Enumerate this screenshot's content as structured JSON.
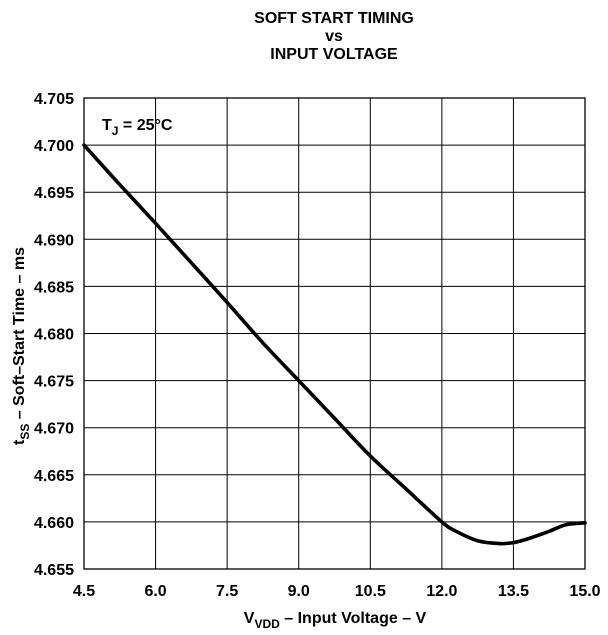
{
  "chart_data": {
    "type": "line",
    "title_lines": [
      "SOFT START TIMING",
      "vs",
      "INPUT VOLTAGE"
    ],
    "xlabel": {
      "main": "V",
      "sub": "VDD",
      "rest": " –  Input Voltage – V"
    },
    "ylabel": {
      "main": "t",
      "sub": "SS",
      "rest": " – Soft–Start Time – ms"
    },
    "annotation": {
      "main": "T",
      "sub": "J",
      "rest": " = 25°C"
    },
    "xlim": [
      4.5,
      15.0
    ],
    "ylim": [
      4.655,
      4.705
    ],
    "x_ticks": [
      4.5,
      6.0,
      7.5,
      9.0,
      10.5,
      12.0,
      13.5,
      15.0
    ],
    "x_tick_labels": [
      "4.5",
      "6.0",
      "7.5",
      "9.0",
      "10.5",
      "12.0",
      "13.5",
      "15.0"
    ],
    "y_ticks": [
      4.655,
      4.66,
      4.665,
      4.67,
      4.675,
      4.68,
      4.685,
      4.69,
      4.695,
      4.7,
      4.705
    ],
    "y_tick_labels": [
      "4.655",
      "4.660",
      "4.665",
      "4.670",
      "4.675",
      "4.680",
      "4.685",
      "4.690",
      "4.695",
      "4.700",
      "4.705"
    ],
    "grid": true,
    "series": [
      {
        "x": [
          4.5,
          5.25,
          6.0,
          6.75,
          7.5,
          8.25,
          9.0,
          9.75,
          10.5,
          11.25,
          12.0,
          12.3,
          12.75,
          13.2,
          13.5,
          13.8,
          14.25,
          14.6,
          15.0
        ],
        "y": [
          4.7,
          4.6958,
          4.6917,
          4.6875,
          4.6833,
          4.679,
          4.675,
          4.671,
          4.667,
          4.6635,
          4.66,
          4.659,
          4.658,
          4.6577,
          4.6578,
          4.6582,
          4.659,
          4.6597,
          4.6599
        ]
      }
    ],
    "colors": {
      "line": "#000000",
      "grid": "#000000",
      "background": "#ffffff"
    }
  }
}
